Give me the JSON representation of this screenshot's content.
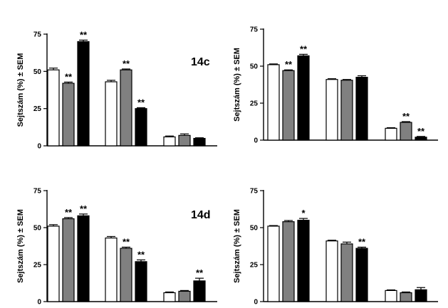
{
  "colors": {
    "s1": "#ffffff",
    "s2": "#808080",
    "s3": "#000000"
  },
  "chart_data": [
    {
      "type": "bar",
      "title": "",
      "panel_label": "14c",
      "ylabel": "Sejtszám (%) ± SEM",
      "ylim": [
        0,
        75
      ],
      "yticks": [
        "0",
        "25",
        "50",
        "75"
      ],
      "groups": 3,
      "series": [
        {
          "values": [
            51,
            43,
            6
          ],
          "errors": [
            1.2,
            1.0,
            0.6
          ],
          "sig": [
            "",
            "",
            ""
          ]
        },
        {
          "values": [
            42,
            51,
            7
          ],
          "errors": [
            0.8,
            0.6,
            1.0
          ],
          "sig": [
            "**",
            "**",
            ""
          ]
        },
        {
          "values": [
            70,
            25,
            5
          ],
          "errors": [
            1.0,
            0.6,
            0.4
          ],
          "sig": [
            "**",
            "**",
            ""
          ]
        }
      ]
    },
    {
      "type": "bar",
      "title": "",
      "panel_label": "",
      "ylabel": "Sejtszám (%) ± SEM",
      "ylim": [
        0,
        75
      ],
      "yticks": [
        "0",
        "25",
        "50",
        "75"
      ],
      "groups": 3,
      "series": [
        {
          "values": [
            51,
            41,
            8
          ],
          "errors": [
            0.5,
            0.5,
            0.4
          ],
          "sig": [
            "",
            "",
            ""
          ]
        },
        {
          "values": [
            47,
            40.5,
            12
          ],
          "errors": [
            0.5,
            0.5,
            0.5
          ],
          "sig": [
            "**",
            "",
            "**"
          ]
        },
        {
          "values": [
            57,
            42.5,
            2
          ],
          "errors": [
            1.0,
            1.0,
            0.5
          ],
          "sig": [
            "**",
            "",
            "**"
          ]
        }
      ]
    },
    {
      "type": "bar",
      "title": "",
      "panel_label": "14d",
      "ylabel": "Sejtszám (%) ± SEM",
      "ylim": [
        0,
        75
      ],
      "yticks": [
        "0",
        "25",
        "50",
        "75"
      ],
      "groups": 3,
      "series": [
        {
          "values": [
            51,
            43,
            6
          ],
          "errors": [
            1.0,
            1.0,
            0.5
          ],
          "sig": [
            "",
            "",
            ""
          ]
        },
        {
          "values": [
            56,
            36,
            7
          ],
          "errors": [
            0.8,
            0.8,
            0.5
          ],
          "sig": [
            "**",
            "**",
            ""
          ]
        },
        {
          "values": [
            58,
            27,
            14
          ],
          "errors": [
            1.2,
            1.2,
            1.8
          ],
          "sig": [
            "**",
            "**",
            "**"
          ]
        }
      ]
    },
    {
      "type": "bar",
      "title": "",
      "panel_label": "",
      "ylabel": "Sejtszám (%) ± SEM",
      "ylim": [
        0,
        75
      ],
      "yticks": [
        "0",
        "25",
        "50",
        "75"
      ],
      "groups": 3,
      "series": [
        {
          "values": [
            51,
            41,
            7.5
          ],
          "errors": [
            0.4,
            0.5,
            0.4
          ],
          "sig": [
            "",
            "",
            ""
          ]
        },
        {
          "values": [
            54,
            39,
            6
          ],
          "errors": [
            0.8,
            1.2,
            0.5
          ],
          "sig": [
            "",
            "",
            ""
          ]
        },
        {
          "values": [
            55,
            36,
            8
          ],
          "errors": [
            1.2,
            0.8,
            1.5
          ],
          "sig": [
            "*",
            "**",
            ""
          ]
        }
      ]
    }
  ]
}
